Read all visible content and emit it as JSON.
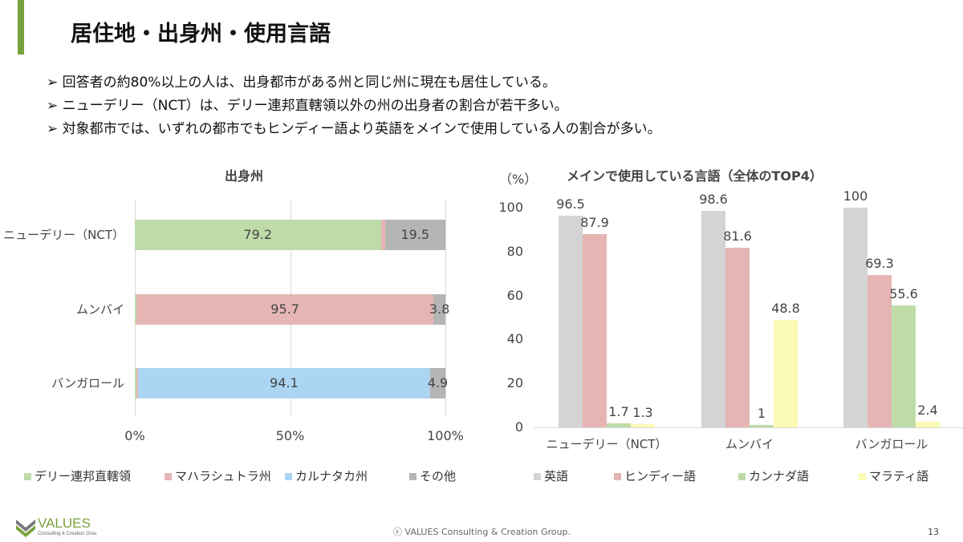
{
  "title": "居住地・出身州・使用言語",
  "bullets": [
    "➢ 回答者の約80%以上の人は、出身都市がある州と同じ州に現在も居住している。",
    "➢ ニューデリー（NCT）は、デリー連邦直轄領以外の州の出身者の割合が若干多い。",
    "➢ 対象都市では、いずれの都市でもヒンディー語より英語をメインで使用している人の割合が多い。"
  ],
  "chart_data": [
    {
      "type": "bar",
      "orientation": "horizontal",
      "stacked": true,
      "title": "出身州",
      "categories": [
        "ニューデリー（NCT）",
        "ムンバイ",
        "バンガロール"
      ],
      "series": [
        {
          "name": "デリー連邦直轄領",
          "color": "#bfdca8",
          "values": [
            79.2,
            0.5,
            0.5
          ]
        },
        {
          "name": "マハラシュトラ州",
          "color": "#e5b5b3",
          "values": [
            1.3,
            95.7,
            0.5
          ]
        },
        {
          "name": "カルナタカ州",
          "color": "#acd4f3",
          "values": [
            0,
            0,
            94.1
          ]
        },
        {
          "name": "その他",
          "color": "#b5b5b5",
          "values": [
            19.5,
            3.8,
            4.9
          ]
        }
      ],
      "labels": [
        [
          "79.2",
          "",
          "",
          "19.5"
        ],
        [
          "",
          "95.7",
          "",
          "3.8"
        ],
        [
          "",
          "",
          "94.1",
          "4.9"
        ]
      ],
      "xticks": [
        "0%",
        "50%",
        "100%"
      ],
      "xlim": [
        0,
        100
      ],
      "legend": "bottom"
    },
    {
      "type": "bar",
      "title": "メインで使用している言語（全体のTOP4）",
      "ylabel": "（%）",
      "categories": [
        "ニューデリー（NCT）",
        "ムンバイ",
        "バンガロール"
      ],
      "series": [
        {
          "name": "英語",
          "color": "#d4d4d4",
          "values": [
            96.5,
            98.6,
            100
          ]
        },
        {
          "name": "ヒンディー語",
          "color": "#e5b5b3",
          "values": [
            87.9,
            81.6,
            69.3
          ]
        },
        {
          "name": "カンナダ語",
          "color": "#bfdca8",
          "values": [
            1.7,
            1,
            55.6
          ]
        },
        {
          "name": "マラティ語",
          "color": "#fbfbb5",
          "values": [
            1.3,
            48.8,
            2.4
          ]
        }
      ],
      "yticks": [
        "0",
        "20",
        "40",
        "60",
        "80",
        "100"
      ],
      "ylim": [
        0,
        100
      ],
      "legend": "bottom"
    }
  ],
  "footer": "ⓒ VALUES Consulting & Creation Group.",
  "page_number": "13",
  "logo": {
    "name": "VALUES",
    "sub": "Consulting & Creation Group"
  }
}
